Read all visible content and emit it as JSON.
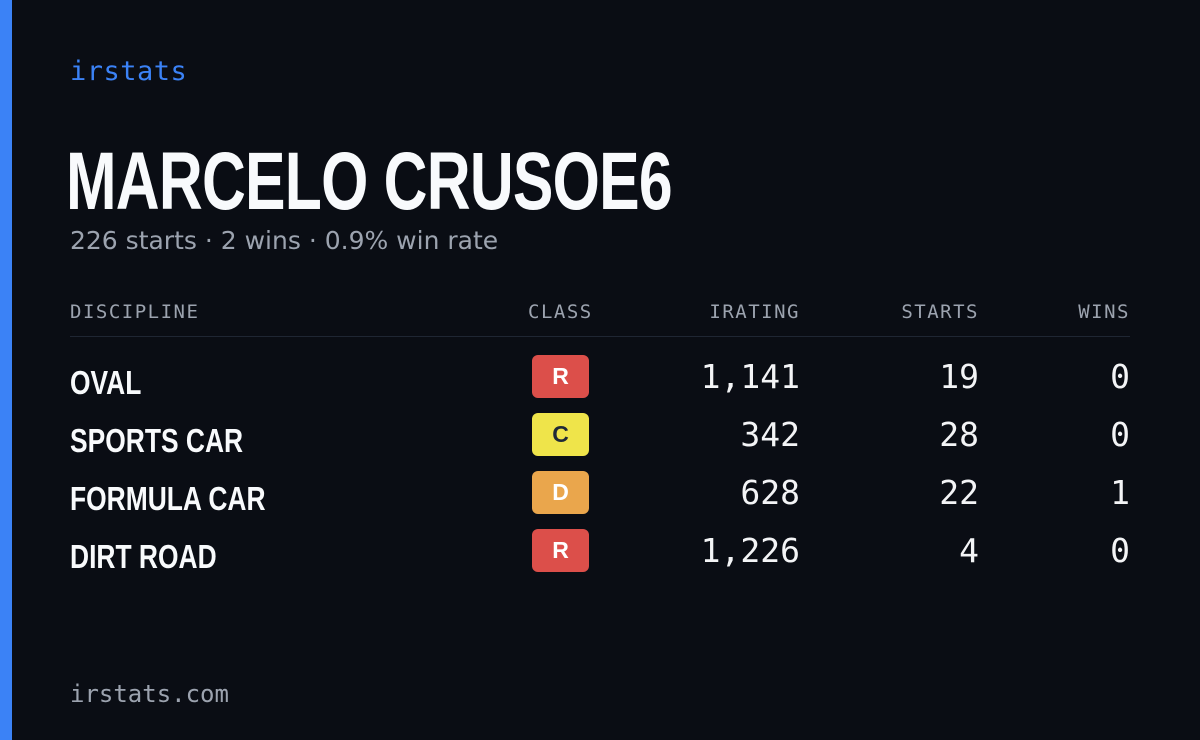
{
  "brand": "irstats",
  "player": {
    "name": "MARCELO CRUSOE6",
    "summary": "226 starts · 2 wins · 0.9% win rate"
  },
  "table": {
    "headers": {
      "discipline": "DISCIPLINE",
      "class": "CLASS",
      "irating": "IRATING",
      "starts": "STARTS",
      "wins": "WINS"
    },
    "rows": [
      {
        "discipline": "OVAL",
        "class": "R",
        "class_color": "#dc4f4a",
        "class_text_color": "#ffffff",
        "irating": "1,141",
        "starts": "19",
        "wins": "0"
      },
      {
        "discipline": "SPORTS CAR",
        "class": "C",
        "class_color": "#efe44a",
        "class_text_color": "#1f2937",
        "irating": "342",
        "starts": "28",
        "wins": "0"
      },
      {
        "discipline": "FORMULA CAR",
        "class": "D",
        "class_color": "#eaa64c",
        "class_text_color": "#ffffff",
        "irating": "628",
        "starts": "22",
        "wins": "1"
      },
      {
        "discipline": "DIRT ROAD",
        "class": "R",
        "class_color": "#dc4f4a",
        "class_text_color": "#ffffff",
        "irating": "1,226",
        "starts": "4",
        "wins": "0"
      }
    ]
  },
  "footer": "irstats.com",
  "colors": {
    "background": "#0a0d14",
    "accent": "#3b82f6",
    "muted": "#9ca3af"
  }
}
